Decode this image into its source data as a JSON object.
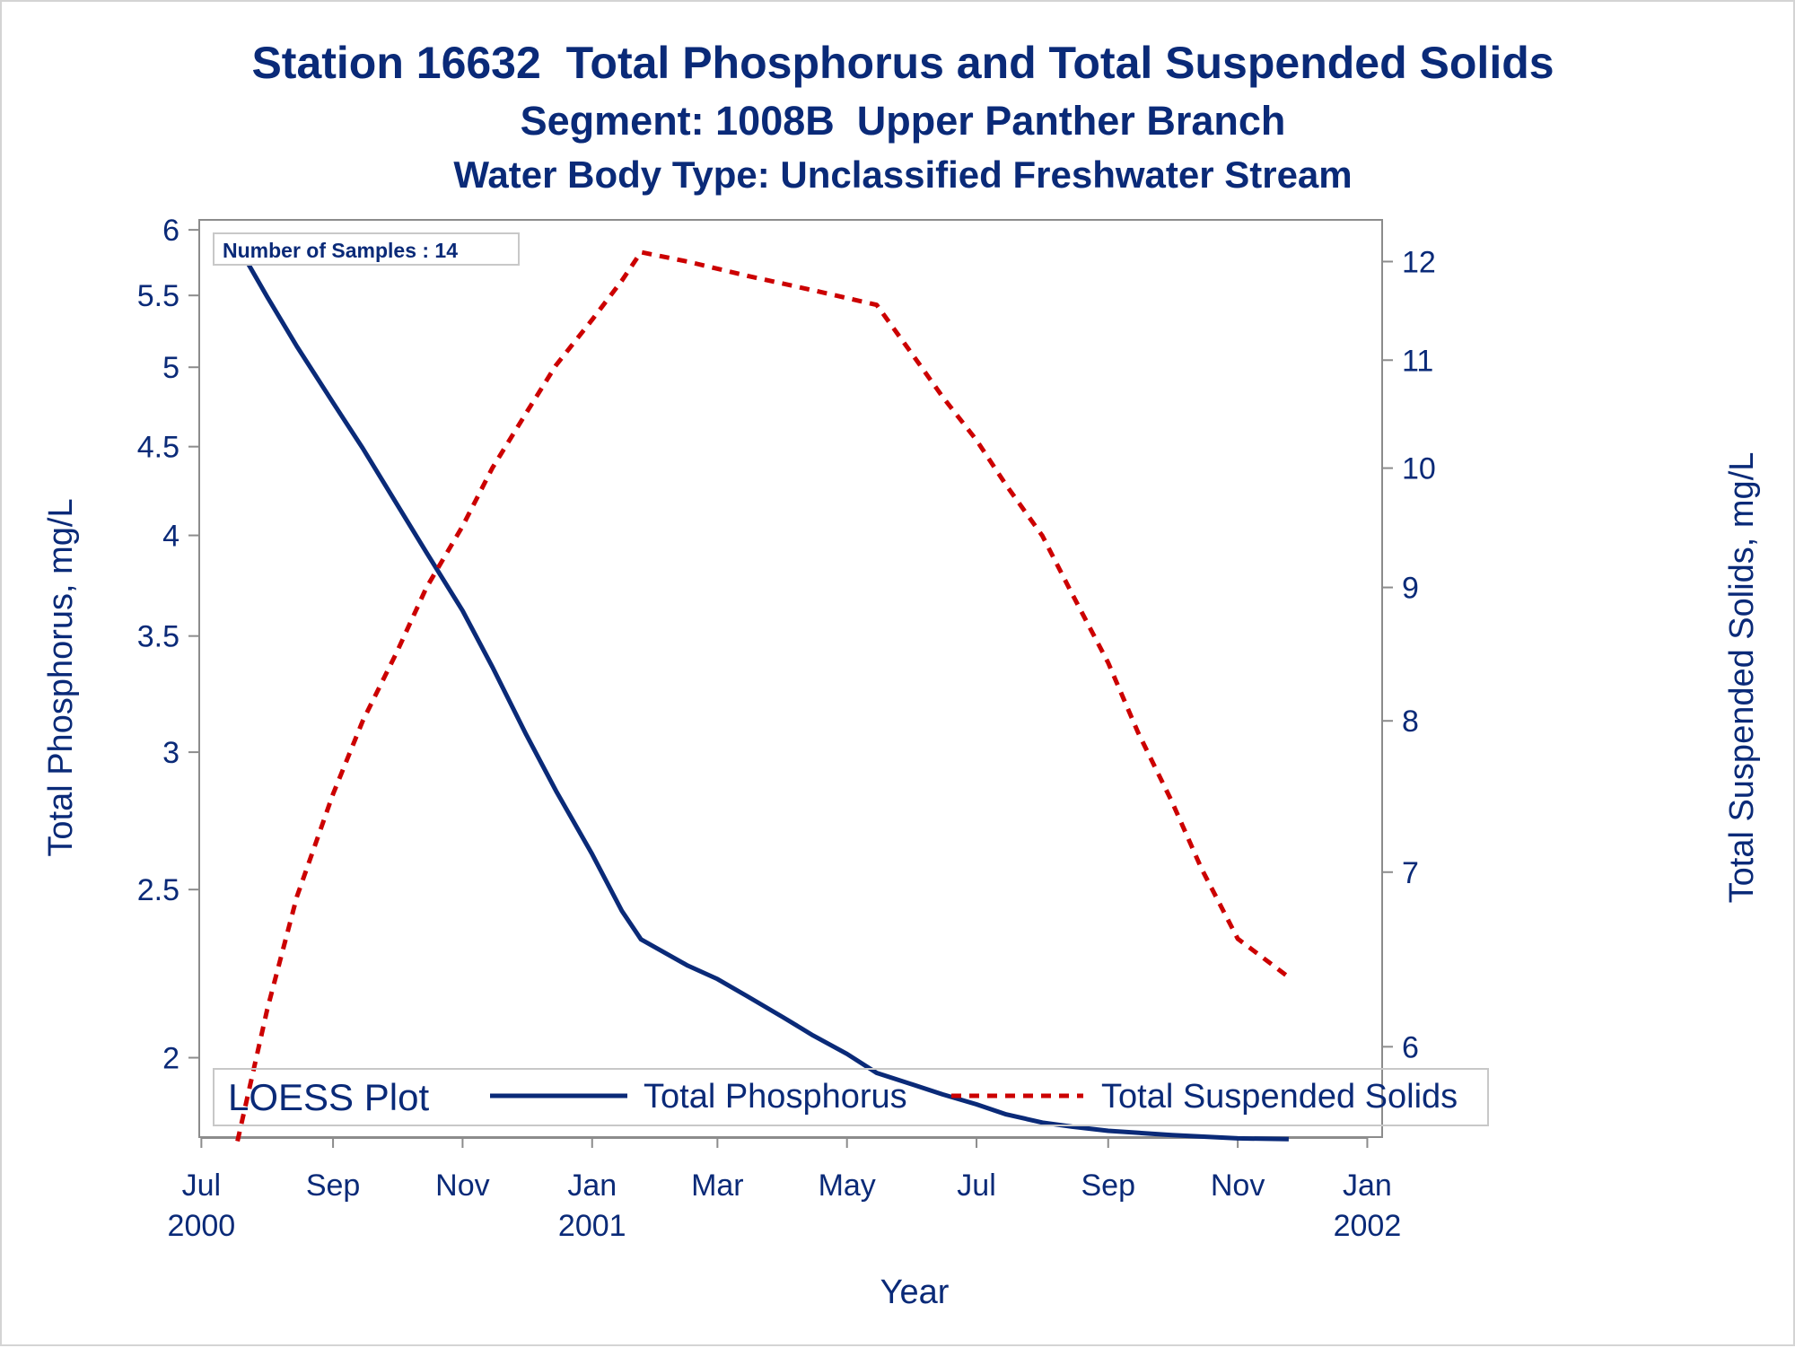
{
  "chart_data": {
    "type": "line",
    "title": "Station 16632  Total Phosphorus and Total Suspended Solids",
    "subtitle": "Segment: 1008B  Upper Panther Branch",
    "subtitle2": "Water Body Type: Unclassified Freshwater Stream",
    "xlabel": "Year",
    "ylabel": "Total Phosphorus, mg/L",
    "y2label": "Total Suspended Solids, mg/L",
    "inset_label": "Number of Samples : 14",
    "legend_title": "LOESS Plot",
    "legend_position": "bottom-inside",
    "grid": false,
    "x_ticks": [
      {
        "date": "2000-07-01",
        "line1": "Jul",
        "line2": "2000"
      },
      {
        "date": "2000-09-01",
        "line1": "Sep",
        "line2": ""
      },
      {
        "date": "2000-11-01",
        "line1": "Nov",
        "line2": ""
      },
      {
        "date": "2001-01-01",
        "line1": "Jan",
        "line2": "2001"
      },
      {
        "date": "2001-03-01",
        "line1": "Mar",
        "line2": ""
      },
      {
        "date": "2001-05-01",
        "line1": "May",
        "line2": ""
      },
      {
        "date": "2001-07-01",
        "line1": "Jul",
        "line2": ""
      },
      {
        "date": "2001-09-01",
        "line1": "Sep",
        "line2": ""
      },
      {
        "date": "2001-11-01",
        "line1": "Nov",
        "line2": ""
      },
      {
        "date": "2002-01-01",
        "line1": "Jan",
        "line2": "2002"
      }
    ],
    "xlim": [
      "2000-06-30",
      "2002-01-08"
    ],
    "y_scale": "log",
    "y_ticks": [
      "2",
      "2.5",
      "3",
      "3.5",
      "4",
      "4.5",
      "5",
      "5.5",
      "6"
    ],
    "ylim": [
      1.8,
      6.08
    ],
    "y2_scale": "log",
    "y2_ticks": [
      "6",
      "7",
      "8",
      "9",
      "10",
      "11",
      "12"
    ],
    "y2lim": [
      5.54,
      12.45
    ],
    "series": [
      {
        "name": "Total Phosphorus",
        "axis": "left",
        "color": "#0a2a78",
        "style": "solid",
        "points": [
          [
            "2000-07-18",
            5.88
          ],
          [
            "2000-08-01",
            5.49
          ],
          [
            "2000-08-15",
            5.14
          ],
          [
            "2000-09-01",
            4.77
          ],
          [
            "2000-09-15",
            4.49
          ],
          [
            "2000-10-01",
            4.17
          ],
          [
            "2000-10-15",
            3.91
          ],
          [
            "2000-11-01",
            3.62
          ],
          [
            "2000-11-15",
            3.36
          ],
          [
            "2000-12-01",
            3.07
          ],
          [
            "2000-12-15",
            2.85
          ],
          [
            "2001-01-01",
            2.62
          ],
          [
            "2001-01-15",
            2.43
          ],
          [
            "2001-01-24",
            2.34
          ],
          [
            "2001-02-15",
            2.26
          ],
          [
            "2001-03-01",
            2.22
          ],
          [
            "2001-03-15",
            2.17
          ],
          [
            "2001-04-01",
            2.11
          ],
          [
            "2001-04-15",
            2.06
          ],
          [
            "2001-05-01",
            2.01
          ],
          [
            "2001-05-15",
            1.96
          ],
          [
            "2001-06-01",
            1.93
          ],
          [
            "2001-06-15",
            1.905
          ],
          [
            "2001-07-01",
            1.88
          ],
          [
            "2001-07-15",
            1.855
          ],
          [
            "2001-08-01",
            1.835
          ],
          [
            "2001-08-15",
            1.825
          ],
          [
            "2001-09-01",
            1.815
          ],
          [
            "2001-10-01",
            1.805
          ],
          [
            "2001-11-01",
            1.797
          ],
          [
            "2001-11-25",
            1.795
          ]
        ]
      },
      {
        "name": "Total Suspended Solids",
        "axis": "right",
        "color": "#cc0000",
        "style": "dashed",
        "points": [
          [
            "2000-07-18",
            5.52
          ],
          [
            "2000-08-01",
            6.2
          ],
          [
            "2000-08-15",
            6.85
          ],
          [
            "2000-09-01",
            7.5
          ],
          [
            "2000-09-15",
            8.0
          ],
          [
            "2000-10-01",
            8.5
          ],
          [
            "2000-10-15",
            9.0
          ],
          [
            "2000-11-01",
            9.5
          ],
          [
            "2000-11-15",
            10.0
          ],
          [
            "2000-12-01",
            10.5
          ],
          [
            "2000-12-15",
            10.95
          ],
          [
            "2001-01-01",
            11.4
          ],
          [
            "2001-01-15",
            11.8
          ],
          [
            "2001-01-24",
            12.1
          ],
          [
            "2001-02-15",
            12.0
          ],
          [
            "2001-03-15",
            11.85
          ],
          [
            "2001-04-15",
            11.7
          ],
          [
            "2001-05-15",
            11.55
          ],
          [
            "2001-06-01",
            11.05
          ],
          [
            "2001-06-15",
            10.65
          ],
          [
            "2001-07-01",
            10.25
          ],
          [
            "2001-07-15",
            9.85
          ],
          [
            "2001-08-01",
            9.42
          ],
          [
            "2001-08-15",
            8.95
          ],
          [
            "2001-09-01",
            8.42
          ],
          [
            "2001-09-15",
            7.92
          ],
          [
            "2001-10-01",
            7.45
          ],
          [
            "2001-10-15",
            7.02
          ],
          [
            "2001-11-01",
            6.6
          ],
          [
            "2001-11-25",
            6.38
          ]
        ]
      }
    ]
  }
}
